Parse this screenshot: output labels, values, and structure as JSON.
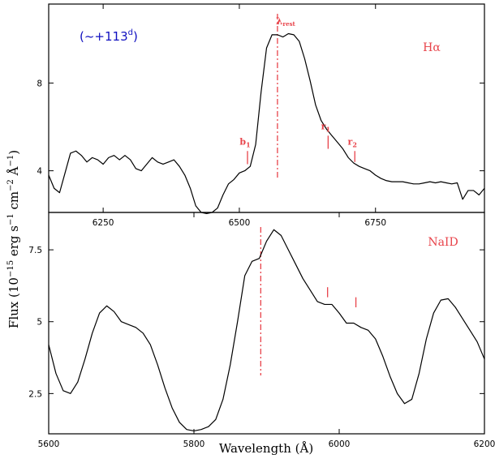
{
  "chart_data": [
    {
      "type": "line",
      "name": "upper-panel",
      "xlim": [
        6150,
        6950
      ],
      "ylim": [
        2.1,
        11.6
      ],
      "xticks": [
        6250,
        6500,
        6750
      ],
      "yticks": [
        4,
        8
      ],
      "epoch_label": "(~+113",
      "epoch_sup": "d",
      "epoch_close": ")",
      "line_label": "Hα",
      "rest_label": "λ",
      "rest_sub": "rest",
      "rest_x": 6570,
      "markers": [
        {
          "label": "b",
          "sub": "1",
          "x": 6515,
          "y0": 4.3,
          "y1": 4.9
        },
        {
          "label": "r",
          "sub": "1",
          "x": 6663,
          "y0": 5.0,
          "y1": 5.6
        },
        {
          "label": "r",
          "sub": "2",
          "x": 6712,
          "y0": 4.4,
          "y1": 4.9
        }
      ],
      "x": [
        6150,
        6160,
        6170,
        6180,
        6190,
        6200,
        6210,
        6220,
        6230,
        6240,
        6250,
        6260,
        6270,
        6280,
        6290,
        6300,
        6310,
        6320,
        6330,
        6340,
        6350,
        6360,
        6370,
        6380,
        6390,
        6400,
        6410,
        6420,
        6430,
        6440,
        6450,
        6460,
        6470,
        6480,
        6490,
        6500,
        6510,
        6520,
        6530,
        6540,
        6550,
        6560,
        6570,
        6580,
        6590,
        6600,
        6610,
        6620,
        6630,
        6640,
        6650,
        6660,
        6670,
        6680,
        6690,
        6700,
        6710,
        6720,
        6730,
        6740,
        6750,
        6760,
        6770,
        6780,
        6790,
        6800,
        6810,
        6820,
        6830,
        6840,
        6850,
        6860,
        6870,
        6880,
        6890,
        6900,
        6910,
        6920,
        6930,
        6940,
        6950
      ],
      "y": [
        3.8,
        3.2,
        3.0,
        3.9,
        4.8,
        4.9,
        4.7,
        4.4,
        4.6,
        4.5,
        4.3,
        4.6,
        4.7,
        4.5,
        4.7,
        4.5,
        4.1,
        4.0,
        4.3,
        4.6,
        4.4,
        4.3,
        4.4,
        4.5,
        4.2,
        3.8,
        3.2,
        2.4,
        2.1,
        2.05,
        2.1,
        2.3,
        2.9,
        3.4,
        3.6,
        3.9,
        4.0,
        4.2,
        5.2,
        7.6,
        9.6,
        10.2,
        10.2,
        10.1,
        10.25,
        10.2,
        9.9,
        9.1,
        8.1,
        7.0,
        6.3,
        5.9,
        5.6,
        5.3,
        5.0,
        4.6,
        4.35,
        4.2,
        4.1,
        4.0,
        3.8,
        3.65,
        3.55,
        3.5,
        3.5,
        3.5,
        3.45,
        3.4,
        3.4,
        3.45,
        3.5,
        3.45,
        3.5,
        3.45,
        3.4,
        3.45,
        2.7,
        3.1,
        3.1,
        2.9,
        3.2
      ]
    },
    {
      "type": "line",
      "name": "lower-panel",
      "xlim": [
        5600,
        6200
      ],
      "ylim": [
        1.1,
        8.8
      ],
      "xticks": [
        5600,
        5800,
        6000,
        6200
      ],
      "yticks": [
        "2.5",
        "5",
        "7.5"
      ],
      "line_label": "NaID",
      "rest_x": 5892,
      "markers": [
        {
          "x": 5984,
          "y0": 5.85,
          "y1": 6.2
        },
        {
          "x": 6023,
          "y0": 5.5,
          "y1": 5.85
        }
      ],
      "x": [
        5600,
        5610,
        5620,
        5630,
        5640,
        5650,
        5660,
        5670,
        5680,
        5690,
        5700,
        5710,
        5720,
        5730,
        5740,
        5750,
        5760,
        5770,
        5780,
        5790,
        5800,
        5810,
        5820,
        5830,
        5840,
        5850,
        5860,
        5870,
        5880,
        5890,
        5900,
        5910,
        5920,
        5930,
        5940,
        5950,
        5960,
        5970,
        5980,
        5990,
        6000,
        6010,
        6020,
        6030,
        6040,
        6050,
        6060,
        6070,
        6080,
        6090,
        6100,
        6110,
        6120,
        6130,
        6140,
        6150,
        6160,
        6170,
        6180,
        6190,
        6200
      ],
      "y": [
        4.2,
        3.2,
        2.6,
        2.5,
        2.9,
        3.7,
        4.6,
        5.3,
        5.55,
        5.35,
        5.0,
        4.9,
        4.8,
        4.6,
        4.2,
        3.5,
        2.7,
        2.0,
        1.5,
        1.25,
        1.2,
        1.25,
        1.35,
        1.6,
        2.3,
        3.5,
        5.0,
        6.6,
        7.1,
        7.2,
        7.8,
        8.2,
        8.0,
        7.5,
        7.0,
        6.5,
        6.1,
        5.7,
        5.6,
        5.6,
        5.3,
        4.95,
        4.95,
        4.8,
        4.7,
        4.4,
        3.8,
        3.1,
        2.5,
        2.15,
        2.3,
        3.2,
        4.4,
        5.3,
        5.75,
        5.8,
        5.5,
        5.1,
        4.7,
        4.3,
        3.7
      ]
    }
  ],
  "shared": {
    "ylabel": "Flux (10",
    "ylabel_exp": "−15",
    "ylabel_units": " erg s",
    "ylabel_exp2": "−1",
    "ylabel_units2": " cm",
    "ylabel_exp3": "−2",
    "ylabel_units3": " Å",
    "ylabel_exp4": "−1",
    "ylabel_close": ")",
    "xlabel": "Wavelength (Å)"
  },
  "colors": {
    "accent": "#e8434a",
    "epoch": "#1010c0",
    "curve": "#000000"
  }
}
